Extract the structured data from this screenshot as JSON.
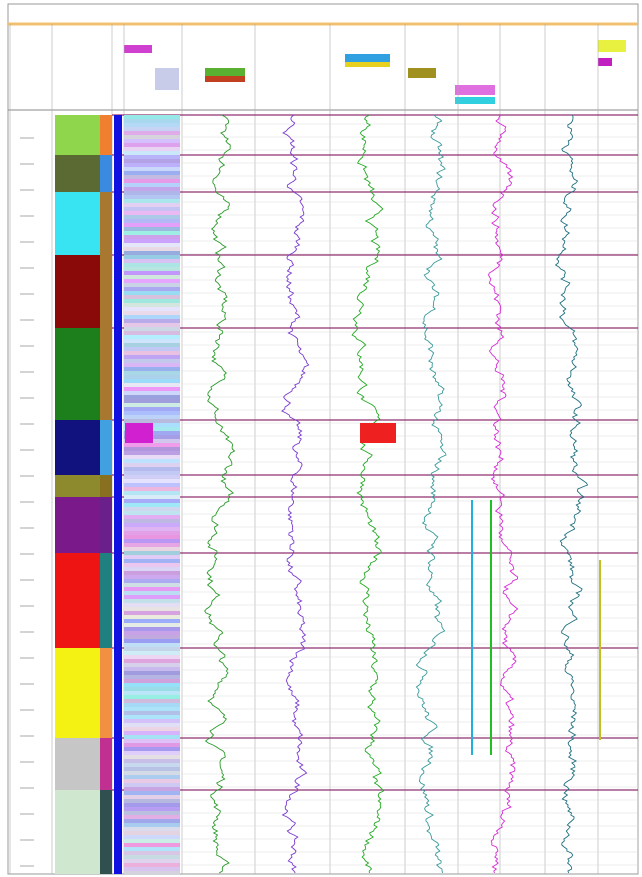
{
  "log": {
    "zone_colors": [
      "#8fd64c",
      "#5a6a32",
      "#38e4f2",
      "#8a0a0a",
      "#1c7f1c",
      "#12127e",
      "#8c8a2c",
      "#7a1a8a",
      "#ee1414",
      "#f4f212",
      "#c6c6c6",
      "#cfe6cf"
    ],
    "curve_colors": [
      "#2a9a2a",
      "#7a3ad0",
      "#22aa22",
      "#3a9a9a",
      "#d62ad6",
      "#1f6f7f"
    ]
  }
}
